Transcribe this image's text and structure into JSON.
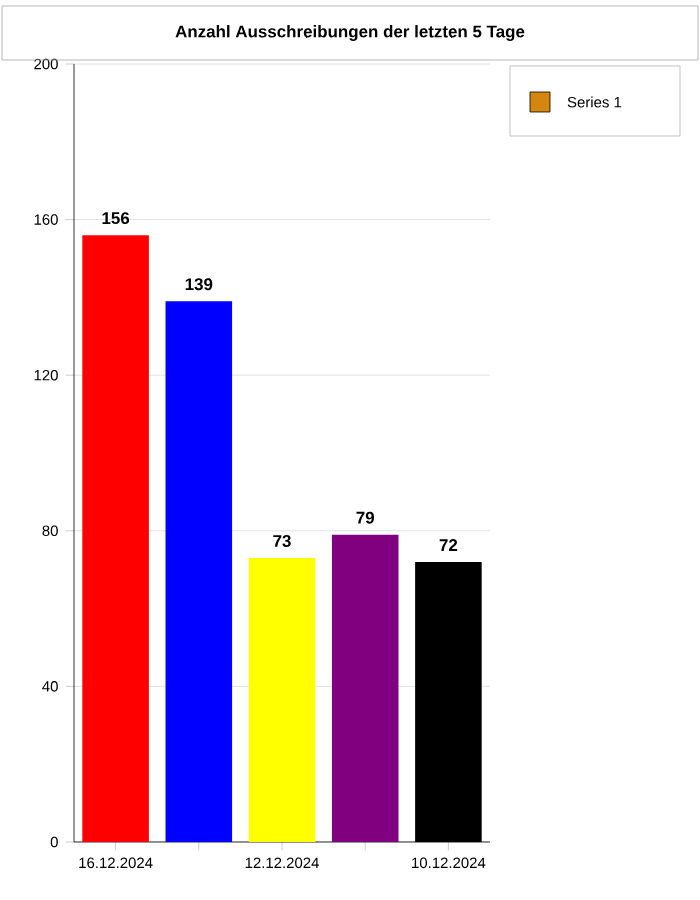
{
  "chart_data": {
    "type": "bar",
    "title": "Anzahl Ausschreibungen der letzten 5 Tage",
    "categories": [
      "16.12.2024",
      null,
      "12.12.2024",
      null,
      "10.12.2024"
    ],
    "series": [
      {
        "name": "Series 1",
        "color": "#d4870f",
        "colors": [
          "#ff0000",
          "#0000ff",
          "#ffff00",
          "#800080",
          "#000000"
        ],
        "values": [
          156,
          139,
          73,
          79,
          72
        ]
      }
    ],
    "ylim": [
      0,
      200
    ],
    "yticks": [
      0,
      40,
      80,
      120,
      160,
      200
    ],
    "grid": "y",
    "legend": "top right",
    "data_labels": true
  }
}
